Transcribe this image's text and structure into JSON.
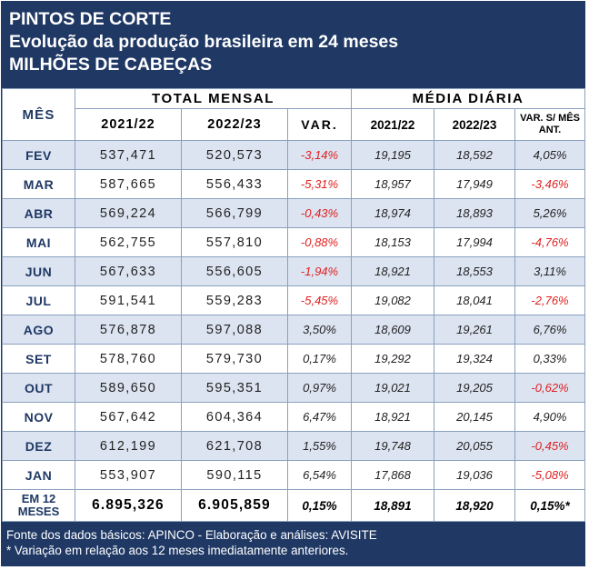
{
  "header": {
    "title": "PINTOS DE CORTE",
    "subtitle": "Evolução da produção brasileira em 24 meses",
    "unit": "MILHÕES DE CABEÇAS"
  },
  "table": {
    "month_header": "MÊS",
    "group_total": "TOTAL MENSAL",
    "group_daily": "MÉDIA DIÁRIA",
    "col_y1": "2021/22",
    "col_y2": "2022/23",
    "col_var": "VAR.",
    "col_d1": "2021/22",
    "col_d2": "2022/23",
    "col_dvar": "VAR. S/ MÊS ANT.",
    "rows": [
      {
        "month": "FEV",
        "t1": "537,471",
        "t2": "520,573",
        "var": "-3,14%",
        "d1": "19,195",
        "d2": "18,592",
        "dvar": "4,05%"
      },
      {
        "month": "MAR",
        "t1": "587,665",
        "t2": "556,433",
        "var": "-5,31%",
        "d1": "18,957",
        "d2": "17,949",
        "dvar": "-3,46%"
      },
      {
        "month": "ABR",
        "t1": "569,224",
        "t2": "566,799",
        "var": "-0,43%",
        "d1": "18,974",
        "d2": "18,893",
        "dvar": "5,26%"
      },
      {
        "month": "MAI",
        "t1": "562,755",
        "t2": "557,810",
        "var": "-0,88%",
        "d1": "18,153",
        "d2": "17,994",
        "dvar": "-4,76%"
      },
      {
        "month": "JUN",
        "t1": "567,633",
        "t2": "556,605",
        "var": "-1,94%",
        "d1": "18,921",
        "d2": "18,553",
        "dvar": "3,11%"
      },
      {
        "month": "JUL",
        "t1": "591,541",
        "t2": "559,283",
        "var": "-5,45%",
        "d1": "19,082",
        "d2": "18,041",
        "dvar": "-2,76%"
      },
      {
        "month": "AGO",
        "t1": "576,878",
        "t2": "597,088",
        "var": "3,50%",
        "d1": "18,609",
        "d2": "19,261",
        "dvar": "6,76%"
      },
      {
        "month": "SET",
        "t1": "578,760",
        "t2": "579,730",
        "var": "0,17%",
        "d1": "19,292",
        "d2": "19,324",
        "dvar": "0,33%"
      },
      {
        "month": "OUT",
        "t1": "589,650",
        "t2": "595,351",
        "var": "0,97%",
        "d1": "19,021",
        "d2": "19,205",
        "dvar": "-0,62%"
      },
      {
        "month": "NOV",
        "t1": "567,642",
        "t2": "604,364",
        "var": "6,47%",
        "d1": "18,921",
        "d2": "20,145",
        "dvar": "4,90%"
      },
      {
        "month": "DEZ",
        "t1": "612,199",
        "t2": "621,708",
        "var": "1,55%",
        "d1": "19,748",
        "d2": "20,055",
        "dvar": "-0,45%"
      },
      {
        "month": "JAN",
        "t1": "553,907",
        "t2": "590,115",
        "var": "6,54%",
        "d1": "17,868",
        "d2": "19,036",
        "dvar": "-5,08%"
      }
    ],
    "total": {
      "label": "EM 12 MESES",
      "t1": "6.895,326",
      "t2": "6.905,859",
      "var": "0,15%",
      "d1": "18,891",
      "d2": "18,920",
      "dvar": "0,15%*"
    }
  },
  "footer": {
    "source": "Fonte dos dados básicos: APINCO - Elaboração e análises: AVISITE",
    "note": "* Variação em relação aos 12 meses  imediatamente anteriores."
  },
  "colors": {
    "navy": "#1f3864",
    "band": "#dce4f1",
    "negative": "#e02020"
  }
}
